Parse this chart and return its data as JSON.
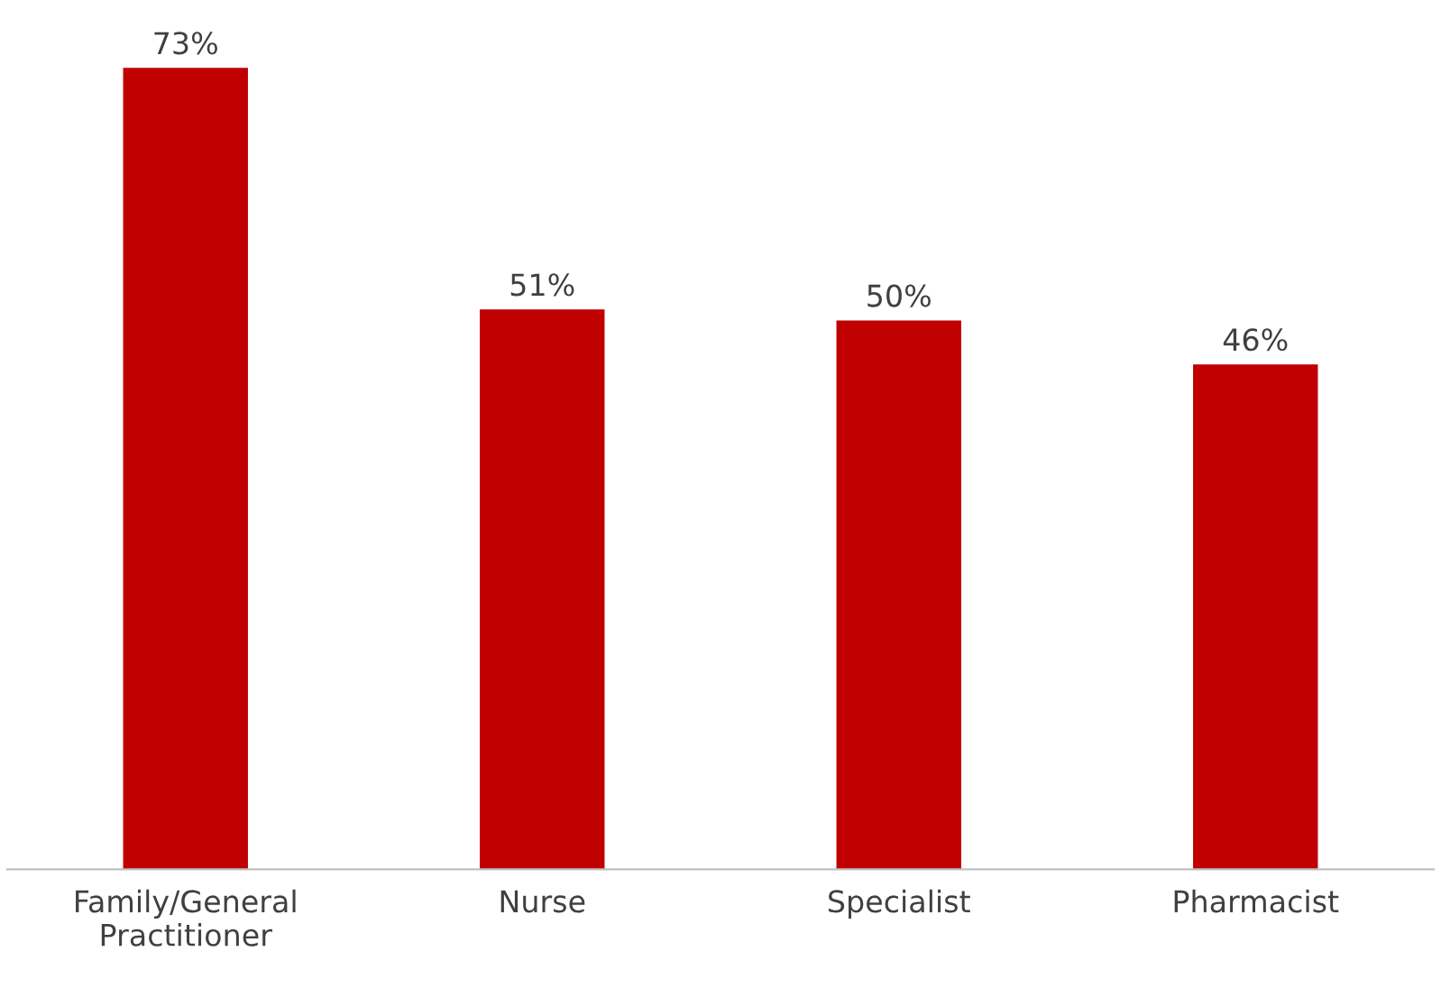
{
  "chart_data": {
    "type": "bar",
    "categories": [
      "Family/General\nPractitioner",
      "Nurse",
      "Specialist",
      "Pharmacist"
    ],
    "values": [
      73,
      51,
      50,
      46
    ],
    "value_labels": [
      "73%",
      "51%",
      "50%",
      "46%"
    ],
    "color": "#c00000",
    "grid": false,
    "legend": false
  }
}
